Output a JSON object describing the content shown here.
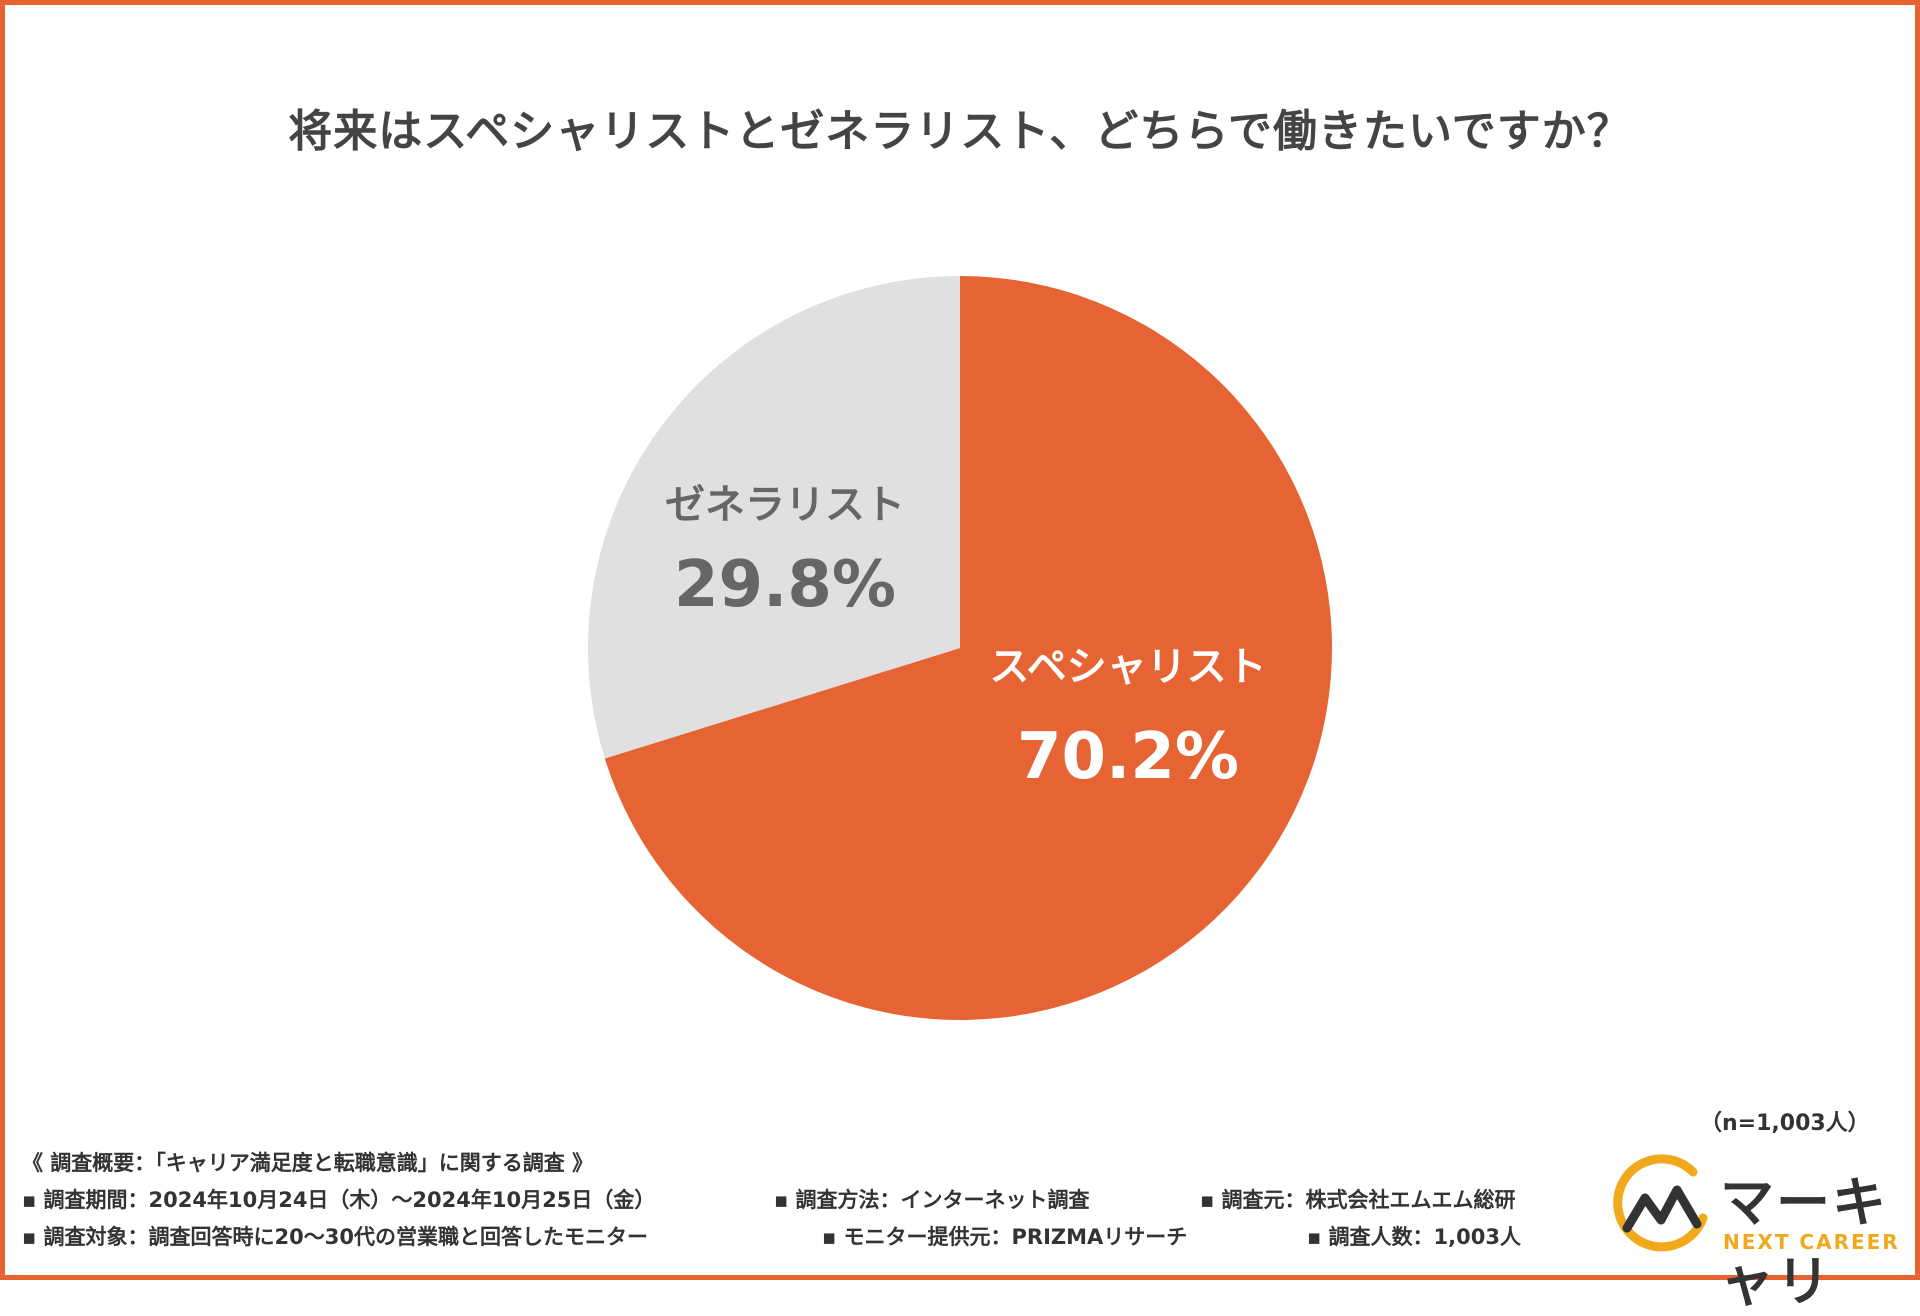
{
  "chart_data": {
    "type": "pie",
    "title": "将来はスペシャリストとゼネラリスト、どちらで働きたいですか？",
    "slices": [
      {
        "label": "スペシャリスト",
        "value": 70.2,
        "value_label": "70.2%",
        "color": "#e66333",
        "text_color": "#ffffff"
      },
      {
        "label": "ゼネラリスト",
        "value": 29.8,
        "value_label": "29.8%",
        "color": "#e0e0e0",
        "text_color": "#666666"
      }
    ],
    "start_angle": "12 o'clock",
    "direction": "clockwise",
    "sample_size": "（n=1,003人）"
  },
  "footer": {
    "heading": "《 調査概要：「キャリア満足度と転職意識」に関する調査 》",
    "row1": [
      "▪ 調査期間：2024年10月24日（木）〜2024年10月25日（金）",
      "▪ 調査方法：インターネット調査",
      "▪ 調査元：株式会社エムエム総研"
    ],
    "row2": [
      "▪ 調査対象：調査回答時に20〜30代の営業職と回答したモニター",
      "▪ モニター提供元：PRIZMAリサーチ",
      "▪ 調査人数：1,003人"
    ]
  },
  "logo": {
    "icon": "chart-line-logo-icon",
    "name": "マーキャリ",
    "sub": "NEXT CAREER",
    "colors": {
      "arc": "#f0a81c",
      "line": "#333333"
    }
  }
}
